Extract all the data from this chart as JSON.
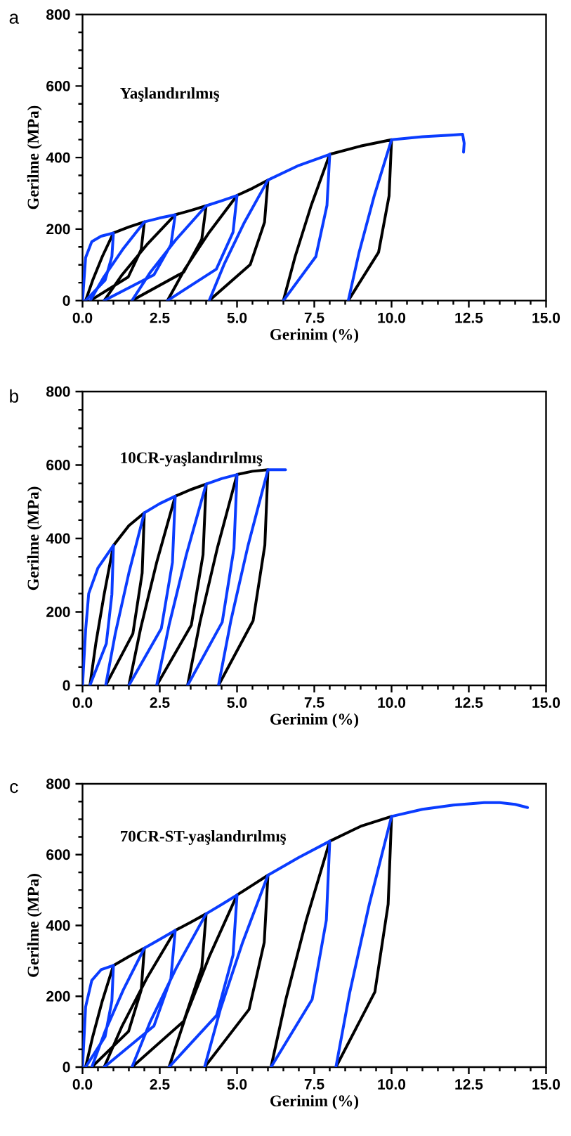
{
  "chart_data": [
    {
      "type": "line",
      "title": "Yaşlandırılmış",
      "xlabel": "Gerinim (%)",
      "ylabel": "Gerilme (MPa)",
      "annotations": [
        "a"
      ],
      "xlim": [
        0,
        15
      ],
      "ylim": [
        0,
        800
      ],
      "xticks": [
        {
          "value": 0,
          "label": "0.0"
        },
        {
          "value": 2.5,
          "label": "2.5"
        },
        {
          "value": 5,
          "label": "5.0"
        },
        {
          "value": 7.5,
          "label": "7.5"
        },
        {
          "value": 10,
          "label": "10.0"
        },
        {
          "value": 12.5,
          "label": "12.5"
        },
        {
          "value": 15,
          "label": "15.0"
        }
      ],
      "yticks": [
        0,
        200,
        400,
        600,
        800
      ],
      "series": [
        {
          "color": "#000000",
          "x": [
            0.1,
            0.33,
            0.64,
            1,
            1.5,
            2,
            1.9,
            1.48,
            0.25,
            null,
            0.7,
            1.28,
            2.08,
            3,
            3.5,
            4,
            3.86,
            3.28,
            1.6,
            null,
            2.75,
            3.31,
            4.1,
            5,
            5.5,
            6,
            5.89,
            5.43,
            4.1,
            null,
            6.5,
            6.88,
            7.4,
            8,
            9,
            10,
            9.92,
            9.58,
            8.6
          ],
          "values": [
            0,
            57,
            123,
            189,
            206,
            220,
            143,
            66,
            0,
            null,
            0,
            72,
            156,
            240,
            252,
            265,
            172,
            80,
            0,
            null,
            0,
            88,
            191,
            294,
            314,
            337,
            219,
            101,
            0,
            null,
            0,
            123,
            266,
            409,
            432,
            450,
            293,
            135,
            0
          ]
        },
        {
          "color": "#0a3cff",
          "x": [
            0,
            0.1,
            0.3,
            0.6,
            1,
            0.95,
            0.73,
            0.1,
            null,
            0.25,
            0.69,
            1.3,
            2,
            2.5,
            3,
            2.86,
            2.31,
            0.7,
            null,
            1.6,
            2.2,
            3.04,
            4,
            4.5,
            5,
            4.87,
            4.33,
            2.75,
            null,
            4.1,
            4.58,
            5.24,
            6,
            7,
            8,
            7.91,
            7.55,
            6.5,
            null,
            8.6,
            8.95,
            9.44,
            10,
            11,
            12,
            12.3,
            12.35,
            12.33
          ],
          "values": [
            0,
            120,
            165,
            180,
            189,
            123,
            57,
            0,
            null,
            0,
            66,
            143,
            220,
            231,
            240,
            156,
            72,
            0,
            null,
            0,
            80,
            172,
            265,
            279,
            294,
            191,
            88,
            0,
            null,
            0,
            101,
            219,
            337,
            378,
            409,
            266,
            123,
            0,
            null,
            0,
            135,
            293,
            450,
            458,
            463,
            465,
            440,
            415
          ]
        }
      ]
    },
    {
      "type": "line",
      "title": "10CR-yaşlandırılmış",
      "xlabel": "Gerinim (%)",
      "ylabel": "Gerilme (MPa)",
      "annotations": [
        "b"
      ],
      "xlim": [
        0,
        15
      ],
      "ylim": [
        0,
        800
      ],
      "xticks": [
        {
          "value": 0,
          "label": "0.0"
        },
        {
          "value": 2.5,
          "label": "2.5"
        },
        {
          "value": 5,
          "label": "5.0"
        },
        {
          "value": 7.5,
          "label": "7.5"
        },
        {
          "value": 10,
          "label": "10.0"
        },
        {
          "value": 12.5,
          "label": "12.5"
        },
        {
          "value": 15,
          "label": "15.0"
        }
      ],
      "yticks": [
        0,
        200,
        400,
        600,
        800
      ],
      "series": [
        {
          "color": "#000000",
          "x": [
            0.24,
            0.43,
            0.7,
            1,
            1.5,
            2,
            1.93,
            1.63,
            0.75,
            null,
            1.5,
            1.88,
            2.4,
            3,
            3.5,
            4,
            3.9,
            3.52,
            2.4,
            null,
            3.4,
            3.8,
            4.36,
            5,
            5.5,
            6,
            5.9,
            5.52,
            4.4
          ],
          "values": [
            0,
            114,
            248,
            381,
            435,
            470,
            306,
            141,
            0,
            null,
            0,
            155,
            335,
            515,
            533,
            548,
            356,
            164,
            0,
            null,
            0,
            172,
            373,
            574,
            583,
            587,
            382,
            176,
            0
          ]
        },
        {
          "color": "#0a3cff",
          "x": [
            0,
            0.1,
            0.2,
            0.5,
            1,
            0.95,
            0.77,
            0.24,
            null,
            0.75,
            1.06,
            1.5,
            2,
            2.5,
            3,
            2.91,
            2.55,
            1.5,
            null,
            2.4,
            2.8,
            3.36,
            4,
            4.5,
            5,
            4.9,
            4.52,
            3.4,
            null,
            4.4,
            4.8,
            5.36,
            6,
            6.57
          ],
          "values": [
            0,
            150,
            250,
            320,
            381,
            248,
            114,
            0,
            null,
            0,
            141,
            306,
            470,
            495,
            515,
            335,
            155,
            0,
            null,
            0,
            164,
            356,
            548,
            563,
            574,
            373,
            172,
            0,
            null,
            0,
            176,
            382,
            587,
            587
          ]
        }
      ]
    },
    {
      "type": "line",
      "title": "70CR-ST-yaşlandırılmış",
      "xlabel": "Gerinim (%)",
      "ylabel": "Gerilme (MPa)",
      "annotations": [
        "c"
      ],
      "xlim": [
        0,
        15
      ],
      "ylim": [
        0,
        800
      ],
      "xticks": [
        {
          "value": 0,
          "label": "0.0"
        },
        {
          "value": 2.5,
          "label": "2.5"
        },
        {
          "value": 5,
          "label": "5.0"
        },
        {
          "value": 7.5,
          "label": "7.5"
        },
        {
          "value": 10,
          "label": "10.0"
        },
        {
          "value": 12.5,
          "label": "12.5"
        },
        {
          "value": 15,
          "label": "15.0"
        }
      ],
      "yticks": [
        0,
        200,
        400,
        600,
        800
      ],
      "series": [
        {
          "color": "#000000",
          "x": [
            0.1,
            0.33,
            0.64,
            1,
            1.5,
            2,
            1.9,
            1.49,
            0.3,
            null,
            0.7,
            1.28,
            2.08,
            3,
            3.5,
            4,
            3.86,
            3.28,
            1.6,
            null,
            2.8,
            3.35,
            4.12,
            5,
            5.5,
            6,
            5.88,
            5.39,
            3.95,
            null,
            6.1,
            6.58,
            7.24,
            8,
            9,
            10,
            9.89,
            9.46,
            8.2
          ],
          "values": [
            0,
            86,
            187,
            287,
            312,
            336,
            218,
            101,
            0,
            null,
            0,
            116,
            251,
            386,
            409,
            433,
            281,
            130,
            0,
            null,
            0,
            146,
            316,
            486,
            514,
            542,
            352,
            163,
            0,
            null,
            0,
            191,
            415,
            638,
            680,
            708,
            460,
            212,
            0
          ]
        },
        {
          "color": "#0a3cff",
          "x": [
            0,
            0.1,
            0.3,
            0.6,
            1,
            0.95,
            0.73,
            0.1,
            null,
            0.3,
            0.73,
            1.32,
            2,
            2.5,
            3,
            2.86,
            2.31,
            0.7,
            null,
            1.6,
            2.2,
            3.04,
            4,
            4.5,
            5,
            4.87,
            4.34,
            2.8,
            null,
            3.95,
            4.46,
            5.18,
            6,
            7,
            8,
            7.89,
            7.43,
            6.1,
            null,
            8.2,
            8.65,
            9.28,
            10,
            11,
            12,
            13,
            13.5,
            14,
            14.4
          ],
          "values": [
            0,
            170,
            245,
            275,
            287,
            187,
            86,
            0,
            null,
            0,
            101,
            218,
            336,
            361,
            386,
            251,
            116,
            0,
            null,
            0,
            130,
            281,
            433,
            459,
            486,
            316,
            146,
            0,
            null,
            0,
            163,
            352,
            542,
            592,
            638,
            415,
            191,
            0,
            null,
            0,
            212,
            460,
            708,
            728,
            740,
            747,
            747,
            742,
            733
          ]
        }
      ]
    }
  ]
}
